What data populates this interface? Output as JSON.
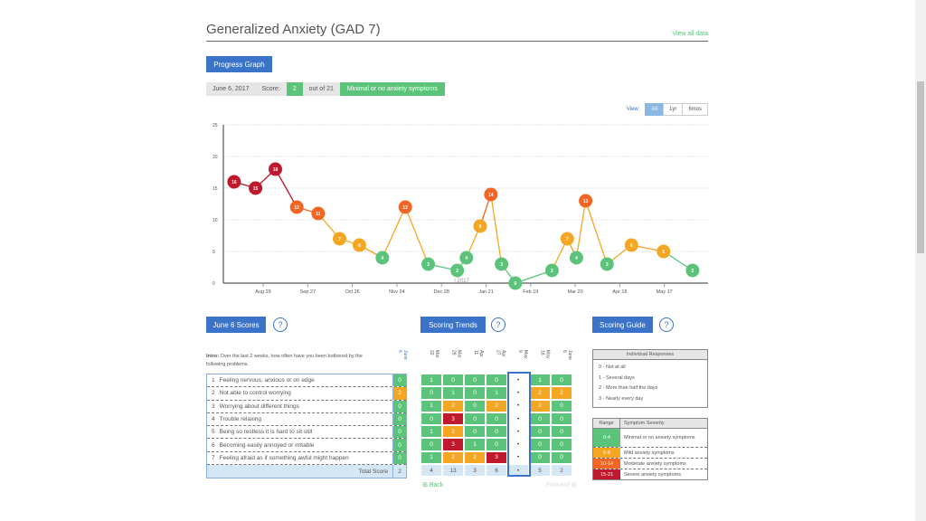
{
  "header": {
    "title": "Generalized Anxiety (GAD 7)",
    "view_all": "View all data"
  },
  "progress_button": "Progress Graph",
  "score_bar": {
    "date": "June 6, 2017",
    "score_label": "Score:",
    "score": "2",
    "out_of": "out of 21",
    "severity": "Minimal or no anxiety symptoms"
  },
  "view": {
    "label": "View:",
    "options": [
      "All",
      "1yr",
      "6mos"
    ],
    "selected": "All"
  },
  "colors": {
    "green": "#5cc47a",
    "orange": "#f5a623",
    "dark_orange": "#f26522",
    "red": "#c0182c",
    "blue": "#3a73c8"
  },
  "chart_data": {
    "type": "line",
    "ylim": [
      0,
      25
    ],
    "yticks": [
      "0",
      "5",
      "10",
      "15",
      "20",
      "25"
    ],
    "xticks": [
      "Aug 29",
      "Sep 27",
      "Oct 26",
      "Nov 24",
      "Dec 28",
      "Jan 21",
      "Feb 19",
      "Mar 20",
      "Apr 18",
      "May 17"
    ],
    "year_marker": "2017",
    "grid": true,
    "x": [
      "2016-08-10",
      "2016-08-24",
      "2016-09-06",
      "2016-09-20",
      "2016-10-04",
      "2016-10-18",
      "2016-10-31",
      "2016-11-15",
      "2016-11-30",
      "2016-12-15",
      "2017-01-03",
      "2017-01-09",
      "2017-01-18",
      "2017-01-25",
      "2017-02-01",
      "2017-02-10",
      "2017-03-06",
      "2017-03-16",
      "2017-03-22",
      "2017-03-28",
      "2017-04-11",
      "2017-04-27",
      "2017-05-18",
      "2017-06-06"
    ],
    "values": [
      16,
      15,
      18,
      12,
      11,
      7,
      6,
      4,
      12,
      3,
      2,
      4,
      9,
      14,
      3,
      0,
      2,
      7,
      4,
      13,
      3,
      6,
      5,
      2
    ]
  },
  "scores": {
    "title": "June 6 Scores",
    "help": "?",
    "intro_label": "Intro:",
    "intro": "Over the last 2 weeks, how often have you been bothered by the following problems.",
    "column": "June 6",
    "items": [
      {
        "n": "1",
        "text": "Feeling nervous, anxious or on edge",
        "v": 0
      },
      {
        "n": "2",
        "text": "Not able to control worrying",
        "v": 2
      },
      {
        "n": "3",
        "text": "Worrying about different things",
        "v": 0
      },
      {
        "n": "4",
        "text": "Trouble relaxing",
        "v": 0
      },
      {
        "n": "5",
        "text": "Being so restless it is hard to sit still",
        "v": 0
      },
      {
        "n": "6",
        "text": "Becoming easily annoyed or irritable",
        "v": 0
      },
      {
        "n": "7",
        "text": "Feeling afraid as if something awful might happen",
        "v": 0
      }
    ],
    "total_label": "Total Score",
    "total": "2"
  },
  "trends": {
    "title": "Scoring Trends",
    "help": "?",
    "columns": [
      "Mar 22",
      "Mar 28",
      "Apr 11",
      "Apr 27",
      "May 9",
      "May 18",
      "June 6"
    ],
    "rows": [
      [
        1,
        0,
        0,
        0,
        "•",
        1,
        0
      ],
      [
        0,
        1,
        0,
        1,
        "•",
        2,
        2
      ],
      [
        1,
        2,
        0,
        2,
        "•",
        2,
        0
      ],
      [
        0,
        3,
        0,
        0,
        "•",
        0,
        0
      ],
      [
        1,
        2,
        0,
        0,
        "•",
        0,
        0
      ],
      [
        0,
        3,
        1,
        0,
        "•",
        0,
        0
      ],
      [
        1,
        2,
        2,
        3,
        "•",
        0,
        0
      ]
    ],
    "totals": [
      4,
      13,
      3,
      6,
      "•",
      5,
      2
    ],
    "back": "Back",
    "forward": "Forward"
  },
  "guide": {
    "title": "Scoring Guide",
    "help": "?",
    "responses_title": "Individual Responses",
    "responses": [
      "0 - Not at all",
      "1 - Several days",
      "2 - More than half the days",
      "3 - Nearly every day"
    ],
    "range_header": "Range",
    "severity_header": "Symptom Severity",
    "ranges": [
      {
        "range": "0-4",
        "label": "Minimal or no anxiety symptoms",
        "color": "#5cc47a"
      },
      {
        "range": "5-9",
        "label": "Mild anxiety symptoms",
        "color": "#f5a623"
      },
      {
        "range": "10-14",
        "label": "Moderate anxiety symptoms",
        "color": "#f26522"
      },
      {
        "range": "15-21",
        "label": "Severe anxiety symptoms",
        "color": "#c0182c"
      }
    ]
  }
}
